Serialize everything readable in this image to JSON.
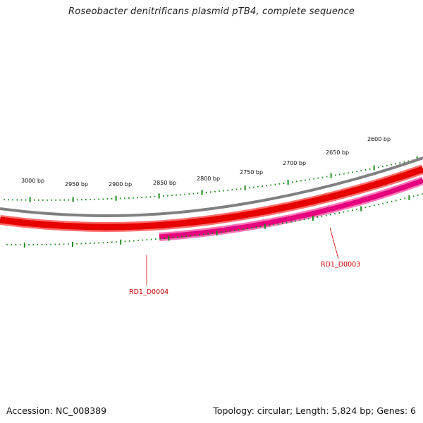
{
  "title": "Roseobacter denitrificans plasmid pTB4, complete sequence",
  "footer": {
    "accession": "Accession: NC_008389",
    "summary": "Topology: circular; Length: 5,824 bp; Genes: 6"
  },
  "ruler": {
    "unit": "bp",
    "labels": [
      "3000 bp",
      "2950 bp",
      "2900 bp",
      "2850 bp",
      "2800 bp",
      "2750 bp",
      "2700 bp",
      "2650 bp",
      "2600 bp"
    ]
  },
  "genes": [
    {
      "name": "RD1_D0004",
      "strand": "forward",
      "color": "#e60000"
    },
    {
      "name": "RD1_D0003",
      "strand": "reverse",
      "color": "#e6007e"
    }
  ],
  "colors": {
    "backbone": "#808080",
    "tick": "#1a8a1a",
    "forward_gene": "#e60000",
    "reverse_gene": "#e6007e",
    "label": "#cc0000"
  }
}
